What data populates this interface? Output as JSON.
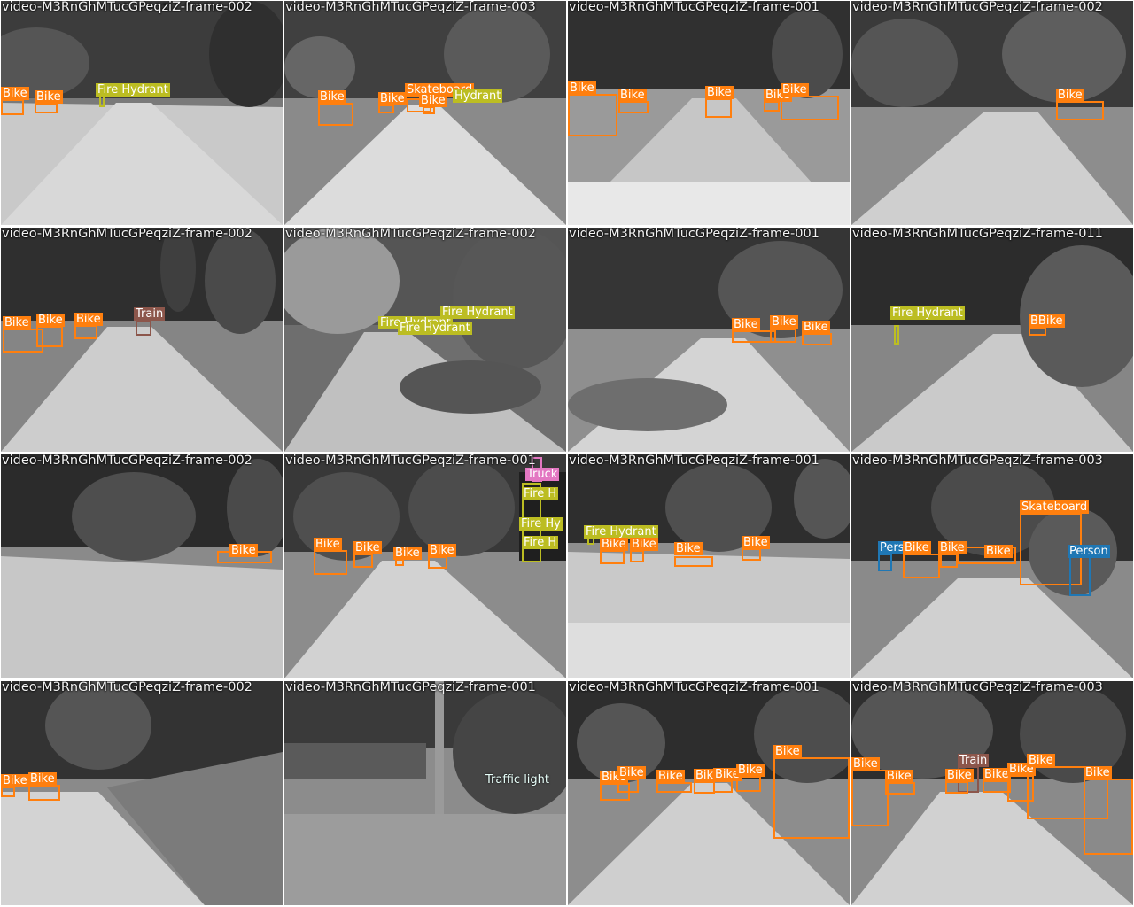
{
  "tiles": [
    {
      "title": "video-M3RnGhMTucGPeqziZ-frame-002",
      "labels": [
        "Bike",
        "Bike",
        "Fire Hydrant"
      ]
    },
    {
      "title": "video-M3RnGhMTucGPeqziZ-frame-003",
      "labels": [
        "Bike",
        "Bike",
        "Skateboard",
        "Bike",
        "Hydrant"
      ]
    },
    {
      "title": "video-M3RnGhMTucGPeqziZ-frame-001",
      "labels": [
        "Bike",
        "Bike",
        "Bike",
        "Bike",
        "Bike"
      ]
    },
    {
      "title": "video-M3RnGhMTucGPeqziZ-frame-002",
      "labels": [
        "Bike"
      ]
    },
    {
      "title": "video-M3RnGhMTucGPeqziZ-frame-002",
      "labels": [
        "Bike",
        "Bike",
        "Bike",
        "Train"
      ]
    },
    {
      "title": "video-M3RnGhMTucGPeqziZ-frame-002",
      "labels": [
        "Fire Hydrant",
        "Fire Hydrant",
        "Fire Hydrant"
      ]
    },
    {
      "title": "video-M3RnGhMTucGPeqziZ-frame-001",
      "labels": [
        "Bike",
        "Bike",
        "Bike"
      ]
    },
    {
      "title": "video-M3RnGhMTucGPeqziZ-frame-011",
      "labels": [
        "Fire Hydrant",
        "BBike"
      ]
    },
    {
      "title": "video-M3RnGhMTucGPeqziZ-frame-002",
      "labels": [
        "Bike"
      ]
    },
    {
      "title": "video-M3RnGhMTucGPeqziZ-frame-001",
      "labels": [
        "Bike",
        "Bike",
        "Bike",
        "Bike",
        "Truck",
        "Fire H",
        "Fire Hy",
        "Fire H"
      ]
    },
    {
      "title": "video-M3RnGhMTucGPeqziZ-frame-001",
      "labels": [
        "Fire Hydrant",
        "Bike",
        "Bike",
        "Bike",
        "Bike"
      ]
    },
    {
      "title": "video-M3RnGhMTucGPeqziZ-frame-003",
      "labels": [
        "Skateboard",
        "Person",
        "Bike",
        "Bike",
        "Bike",
        "Person"
      ]
    },
    {
      "title": "video-M3RnGhMTucGPeqziZ-frame-002",
      "labels": [
        "Bike",
        "Bike"
      ]
    },
    {
      "title": "video-M3RnGhMTucGPeqziZ-frame-001",
      "labels": [
        "Traffic light"
      ]
    },
    {
      "title": "video-M3RnGhMTucGPeqziZ-frame-001",
      "labels": [
        "Bike",
        "Bike",
        "Bike",
        "Bike",
        "Bike",
        "Bike",
        "Bike"
      ]
    },
    {
      "title": "video-M3RnGhMTucGPeqziZ-frame-003",
      "labels": [
        "Bike",
        "Bike",
        "Train",
        "Bike",
        "Bike",
        "Bike",
        "Bike",
        "Bike"
      ]
    }
  ],
  "colors": {
    "Bike": "#ff7f0e",
    "Fire Hydrant": "#bcbd22",
    "Train": "#8c564b",
    "Person": "#1f77b4",
    "Truck": "#e377c2",
    "Traffic light": "#9fdcd0"
  }
}
